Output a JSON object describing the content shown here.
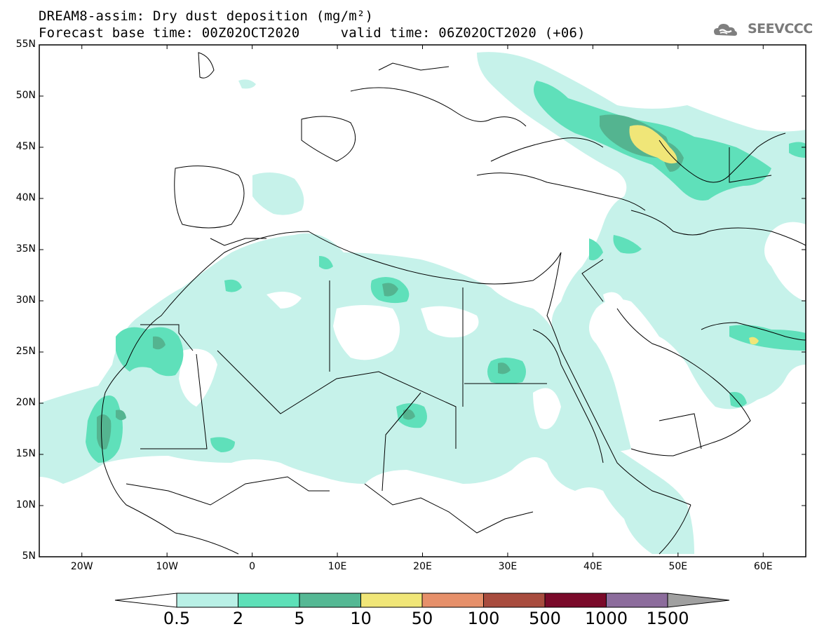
{
  "title": {
    "line1": "DREAM8-assim: Dry dust deposition (mg/m²)",
    "line2": "Forecast base time: 00Z02OCT2020     valid time: 06Z02OCT2020 (+06)"
  },
  "logo": {
    "text": "SEEVCCC",
    "icon": "cloud-icon",
    "color": "#808080"
  },
  "map": {
    "lon_range": [
      -25,
      65
    ],
    "lat_range": [
      5,
      55
    ],
    "lon_ticks": [
      {
        "value": -20,
        "label": "20W"
      },
      {
        "value": -10,
        "label": "10W"
      },
      {
        "value": 0,
        "label": "0"
      },
      {
        "value": 10,
        "label": "10E"
      },
      {
        "value": 20,
        "label": "20E"
      },
      {
        "value": 30,
        "label": "30E"
      },
      {
        "value": 40,
        "label": "40E"
      },
      {
        "value": 50,
        "label": "50E"
      },
      {
        "value": 60,
        "label": "60E"
      }
    ],
    "lat_ticks": [
      {
        "value": 55,
        "label": "55N"
      },
      {
        "value": 50,
        "label": "50N"
      },
      {
        "value": 45,
        "label": "45N"
      },
      {
        "value": 40,
        "label": "40N"
      },
      {
        "value": 35,
        "label": "35N"
      },
      {
        "value": 30,
        "label": "30N"
      },
      {
        "value": 25,
        "label": "25N"
      },
      {
        "value": 20,
        "label": "20N"
      },
      {
        "value": 15,
        "label": "15N"
      },
      {
        "value": 10,
        "label": "10N"
      },
      {
        "value": 5,
        "label": "5N"
      }
    ]
  },
  "colorbar": {
    "labels": [
      "0.5",
      "2",
      "5",
      "10",
      "50",
      "100",
      "500",
      "1000",
      "1500"
    ],
    "colors": [
      "#b9f0e6",
      "#5ee0b8",
      "#55b894",
      "#f0e678",
      "#e6906a",
      "#a84c3e",
      "#7a0a2a",
      "#8c6c9c"
    ],
    "under_color": "#ffffff",
    "over_color": "#a0a0a0"
  },
  "field_colors": {
    "level1": "#c6f2ea",
    "level2": "#5fe0ba",
    "level3": "#54b490",
    "level4": "#f0e678"
  }
}
